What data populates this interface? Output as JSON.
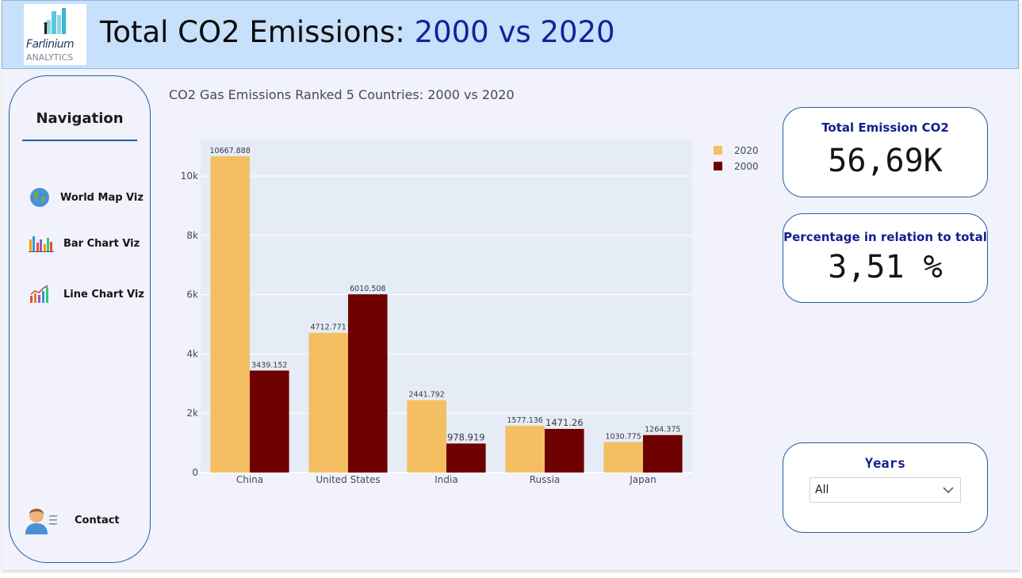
{
  "header": {
    "logo": {
      "name": "Farlinium",
      "sub": "ANALYTICS"
    },
    "title_part1": "Total CO2 Emissions: ",
    "title_part2": "2000 vs 2020"
  },
  "nav": {
    "title": "Navigation",
    "items": [
      {
        "label": "World Map Viz",
        "icon": "globe-icon"
      },
      {
        "label": "Bar Chart Viz",
        "icon": "bar-chart-icon"
      },
      {
        "label": "Line Chart Viz",
        "icon": "line-chart-icon"
      }
    ],
    "contact": {
      "label": "Contact",
      "icon": "person-icon"
    }
  },
  "cards": {
    "total": {
      "label": "Total Emission CO2",
      "value": "56,69K"
    },
    "percentage": {
      "label": "Percentage in relation to total",
      "value": "3,51 %"
    }
  },
  "filter": {
    "label": "Years",
    "selected": "All"
  },
  "colors": {
    "s2020": "#f4bf63",
    "s2000": "#6e0000",
    "plot_bg": "#e6ecf5",
    "accent": "#1f5fa6",
    "title_blue": "#14209a"
  },
  "chart_data": {
    "type": "bar",
    "title": "CO2 Gas Emissions Ranked 5 Countries: 2000 vs 2020",
    "categories": [
      "China",
      "United States",
      "India",
      "Russia",
      "Japan"
    ],
    "series": [
      {
        "name": "2020",
        "values": [
          10667.888,
          4712.771,
          2441.792,
          1577.136,
          1030.775
        ],
        "labels": [
          "10667.888",
          "4712.771",
          "2441.792",
          "1577.136",
          "1030.775"
        ]
      },
      {
        "name": "2000",
        "values": [
          3439.152,
          6010.508,
          978.919,
          1471.26,
          1264.375
        ],
        "labels": [
          "3439.152",
          "6010.508",
          "978.919",
          "1471.26",
          "1264.375"
        ]
      }
    ],
    "yticks": [
      0,
      2000,
      4000,
      6000,
      8000,
      10000
    ],
    "ytick_labels": [
      "0",
      "2k",
      "4k",
      "6k",
      "8k",
      "10k"
    ],
    "ylim": [
      0,
      11229
    ],
    "grid": true,
    "legend_position": "top-right"
  }
}
